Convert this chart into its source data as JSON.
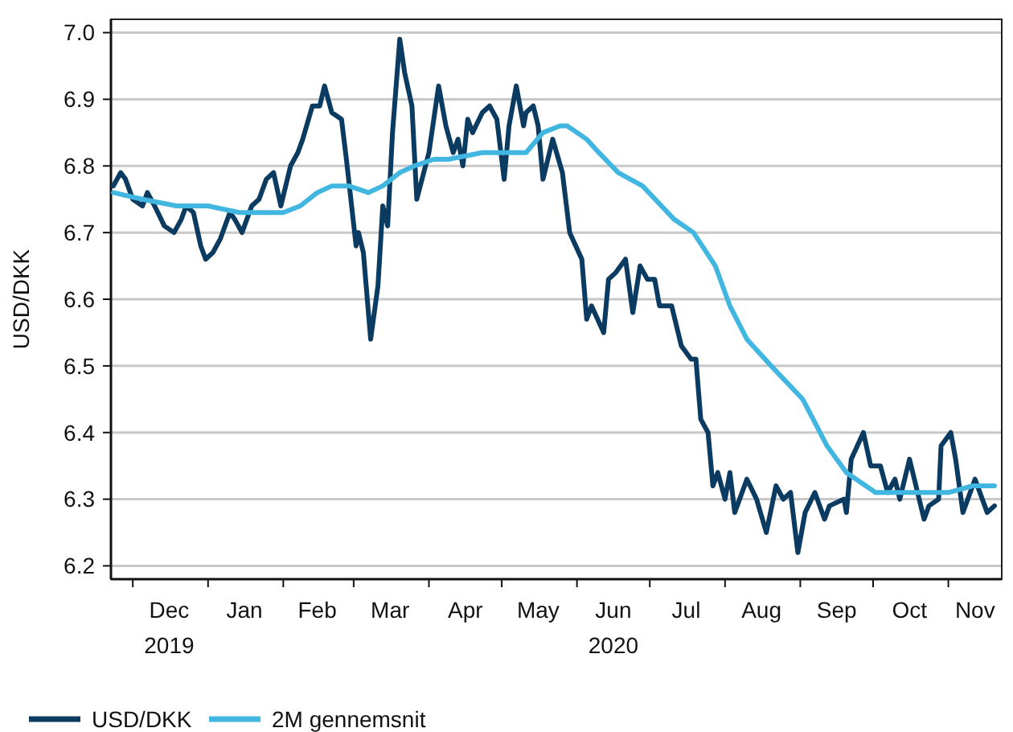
{
  "chart_data": {
    "type": "line",
    "ylabel": "USD/DKK",
    "legend": "bottom left",
    "grid": "y",
    "line_style": "solid",
    "marker": "none",
    "xlim": [
      "2019-11-22",
      "2020-11-23"
    ],
    "ylim": [
      6.18,
      7.02
    ],
    "yticks": [
      6.2,
      6.3,
      6.4,
      6.5,
      6.6,
      6.7,
      6.8,
      6.9,
      {
        "value": 7.0,
        "label": "7.0"
      }
    ],
    "xticks": [
      {
        "value": "2019-12-01",
        "label": null
      },
      {
        "value": "2020-01-01",
        "label": null
      },
      {
        "value": "2020-02-01",
        "label": null
      },
      {
        "value": "2020-03-01",
        "label": null
      },
      {
        "value": "2020-04-01",
        "label": null
      },
      {
        "value": "2020-05-01",
        "label": null
      },
      {
        "value": "2020-06-01",
        "label": null
      },
      {
        "value": "2020-07-01",
        "label": null
      },
      {
        "value": "2020-08-01",
        "label": null
      },
      {
        "value": "2020-09-01",
        "label": null
      },
      {
        "value": "2020-10-01",
        "label": null
      },
      {
        "value": "2020-11-01",
        "label": null
      },
      {
        "value": "2019-12-16",
        "label": "Dec\n2019"
      },
      {
        "value": "2020-01-16",
        "label": "Jan"
      },
      {
        "value": "2020-02-15",
        "label": "Feb"
      },
      {
        "value": "2020-03-16",
        "label": "Mar"
      },
      {
        "value": "2020-04-16",
        "label": "Apr"
      },
      {
        "value": "2020-05-16",
        "label": "May"
      },
      {
        "value": "2020-06-16",
        "label": "Jun\n2020"
      },
      {
        "value": "2020-07-16",
        "label": "Jul"
      },
      {
        "value": "2020-08-16",
        "label": "Aug"
      },
      {
        "value": "2020-09-16",
        "label": "Sep"
      },
      {
        "value": "2020-10-16",
        "label": "Oct"
      },
      {
        "value": "2020-11-12",
        "label": "Nov"
      }
    ],
    "series": [
      {
        "name": "USD/DKK",
        "color": "#0b3b61",
        "x": [
          "2019-11-23",
          "2019-11-26",
          "2019-11-28",
          "2019-12-01",
          "2019-12-05",
          "2019-12-07",
          "2019-12-10",
          "2019-12-14",
          "2019-12-18",
          "2019-12-21",
          "2019-12-23",
          "2019-12-26",
          "2019-12-29",
          "2019-12-31",
          "2020-01-03",
          "2020-01-06",
          "2020-01-08",
          "2020-01-10",
          "2020-01-12",
          "2020-01-15",
          "2020-01-19",
          "2020-01-22",
          "2020-01-25",
          "2020-01-28",
          "2020-01-31",
          "2020-02-04",
          "2020-02-07",
          "2020-02-09",
          "2020-02-13",
          "2020-02-16",
          "2020-02-18",
          "2020-02-21",
          "2020-02-25",
          "2020-02-27",
          "2020-03-02",
          "2020-03-03",
          "2020-03-05",
          "2020-03-08",
          "2020-03-11",
          "2020-03-13",
          "2020-03-15",
          "2020-03-17",
          "2020-03-20",
          "2020-03-22",
          "2020-03-25",
          "2020-03-27",
          "2020-04-01",
          "2020-04-05",
          "2020-04-08",
          "2020-04-11",
          "2020-04-13",
          "2020-04-15",
          "2020-04-17",
          "2020-04-19",
          "2020-04-23",
          "2020-04-26",
          "2020-04-29",
          "2020-05-02",
          "2020-05-04",
          "2020-05-07",
          "2020-05-10",
          "2020-05-11",
          "2020-05-14",
          "2020-05-16",
          "2020-05-18",
          "2020-05-22",
          "2020-05-26",
          "2020-05-29",
          "2020-06-03",
          "2020-06-05",
          "2020-06-07",
          "2020-06-12",
          "2020-06-14",
          "2020-06-17",
          "2020-06-21",
          "2020-06-24",
          "2020-06-27",
          "2020-06-30",
          "2020-07-03",
          "2020-07-05",
          "2020-07-10",
          "2020-07-14",
          "2020-07-18",
          "2020-07-20",
          "2020-07-22",
          "2020-07-25",
          "2020-07-27",
          "2020-07-29",
          "2020-08-01",
          "2020-08-03",
          "2020-08-05",
          "2020-08-10",
          "2020-08-14",
          "2020-08-18",
          "2020-08-22",
          "2020-08-25",
          "2020-08-28",
          "2020-08-31",
          "2020-09-03",
          "2020-09-07",
          "2020-09-11",
          "2020-09-13",
          "2020-09-19",
          "2020-09-20",
          "2020-09-22",
          "2020-09-27",
          "2020-09-30",
          "2020-10-04",
          "2020-10-07",
          "2020-10-10",
          "2020-10-12",
          "2020-10-16",
          "2020-10-22",
          "2020-10-24",
          "2020-10-28",
          "2020-10-29",
          "2020-11-02",
          "2020-11-04",
          "2020-11-07",
          "2020-11-12",
          "2020-11-17",
          "2020-11-20"
        ],
        "values": [
          6.77,
          6.79,
          6.78,
          6.75,
          6.74,
          6.76,
          6.74,
          6.71,
          6.7,
          6.72,
          6.74,
          6.73,
          6.68,
          6.66,
          6.67,
          6.69,
          6.71,
          6.73,
          6.72,
          6.7,
          6.74,
          6.75,
          6.78,
          6.79,
          6.74,
          6.8,
          6.82,
          6.84,
          6.89,
          6.89,
          6.92,
          6.88,
          6.87,
          6.81,
          6.68,
          6.7,
          6.67,
          6.54,
          6.62,
          6.74,
          6.71,
          6.85,
          6.99,
          6.94,
          6.89,
          6.75,
          6.82,
          6.92,
          6.86,
          6.82,
          6.84,
          6.8,
          6.87,
          6.85,
          6.88,
          6.89,
          6.87,
          6.78,
          6.86,
          6.92,
          6.86,
          6.88,
          6.89,
          6.86,
          6.78,
          6.84,
          6.79,
          6.7,
          6.66,
          6.57,
          6.59,
          6.55,
          6.63,
          6.64,
          6.66,
          6.58,
          6.65,
          6.63,
          6.63,
          6.59,
          6.59,
          6.53,
          6.51,
          6.51,
          6.42,
          6.4,
          6.32,
          6.34,
          6.3,
          6.34,
          6.28,
          6.33,
          6.3,
          6.25,
          6.32,
          6.3,
          6.31,
          6.22,
          6.28,
          6.31,
          6.27,
          6.29,
          6.3,
          6.28,
          6.36,
          6.4,
          6.35,
          6.35,
          6.31,
          6.33,
          6.3,
          6.36,
          6.27,
          6.29,
          6.3,
          6.38,
          6.4,
          6.36,
          6.28,
          6.33,
          6.28,
          6.29
        ]
      },
      {
        "name": "2M gennemsnit",
        "color": "#41b6e0",
        "x": [
          "2019-11-23",
          "2019-12-05",
          "2019-12-19",
          "2020-01-01",
          "2020-01-14",
          "2020-01-24",
          "2020-02-01",
          "2020-02-08",
          "2020-02-15",
          "2020-02-21",
          "2020-02-28",
          "2020-03-07",
          "2020-03-13",
          "2020-03-20",
          "2020-03-26",
          "2020-04-03",
          "2020-04-09",
          "2020-04-23",
          "2020-05-05",
          "2020-05-11",
          "2020-05-18",
          "2020-05-25",
          "2020-05-28",
          "2020-06-05",
          "2020-06-10",
          "2020-06-18",
          "2020-06-28",
          "2020-07-11",
          "2020-07-19",
          "2020-07-28",
          "2020-08-03",
          "2020-08-10",
          "2020-08-20",
          "2020-09-02",
          "2020-09-12",
          "2020-09-20",
          "2020-10-02",
          "2020-10-12",
          "2020-10-22",
          "2020-11-01",
          "2020-11-11",
          "2020-11-20"
        ],
        "values": [
          6.76,
          6.75,
          6.74,
          6.74,
          6.73,
          6.73,
          6.73,
          6.74,
          6.76,
          6.77,
          6.77,
          6.76,
          6.77,
          6.79,
          6.8,
          6.81,
          6.81,
          6.82,
          6.82,
          6.82,
          6.85,
          6.86,
          6.86,
          6.84,
          6.82,
          6.79,
          6.77,
          6.72,
          6.7,
          6.65,
          6.59,
          6.54,
          6.5,
          6.45,
          6.38,
          6.34,
          6.31,
          6.31,
          6.31,
          6.31,
          6.32,
          6.32
        ]
      }
    ]
  }
}
